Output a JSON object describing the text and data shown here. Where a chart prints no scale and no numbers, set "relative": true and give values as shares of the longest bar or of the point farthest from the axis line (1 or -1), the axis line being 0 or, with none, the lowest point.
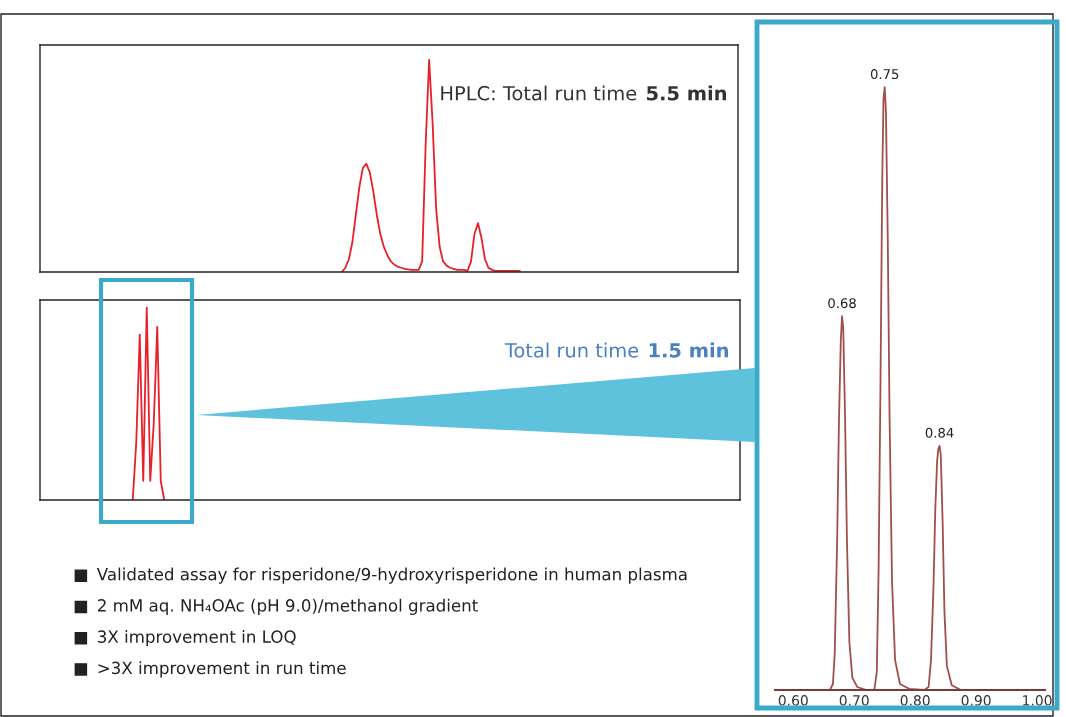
{
  "chart_data": [
    {
      "type": "line",
      "relative": true,
      "tick_labels": false,
      "grid": false,
      "categories": [
        null,
        null,
        null,
        null,
        null,
        null,
        null,
        null,
        null,
        null,
        null,
        null,
        null,
        null,
        null,
        null,
        null,
        null,
        null,
        null,
        null,
        null,
        null,
        null,
        null,
        null,
        null,
        null,
        null,
        null,
        null,
        null,
        null,
        null,
        null,
        null,
        null,
        null,
        null,
        null,
        null,
        null,
        null,
        null,
        null,
        null,
        null,
        null,
        null,
        null,
        null,
        null,
        null,
        null,
        null,
        null,
        null,
        null,
        null,
        null,
        null,
        null,
        null,
        null,
        null,
        null,
        null,
        null,
        null,
        null,
        null,
        null,
        null,
        null,
        null,
        null,
        null,
        null,
        null,
        null,
        null,
        null,
        null,
        null,
        null,
        null,
        null,
        null,
        null,
        null,
        null,
        null,
        null,
        null,
        null,
        null,
        null,
        null,
        null,
        null,
        null,
        null,
        null,
        null,
        null,
        null,
        null,
        null,
        null,
        null,
        null,
        null,
        null,
        null,
        null,
        null,
        null,
        null,
        null,
        null,
        null,
        null,
        null,
        null,
        null,
        null,
        null,
        null,
        null,
        null,
        null,
        null,
        null,
        null,
        null,
        null,
        null,
        null,
        null,
        null,
        null,
        null,
        null,
        null,
        null,
        null,
        null,
        null,
        null,
        null,
        null,
        null,
        null,
        null,
        null,
        null,
        null,
        null,
        null,
        null,
        null,
        null,
        null,
        null,
        null,
        null,
        null,
        null,
        null,
        null,
        null,
        null,
        null,
        null,
        null,
        null,
        null,
        null,
        null,
        null,
        null,
        null,
        null,
        null,
        null,
        null,
        null,
        null,
        null,
        null,
        null,
        null,
        null,
        null,
        null,
        null,
        null,
        null,
        null,
        null
      ],
      "series": [
        {
          "color": "#e8202a",
          "values": [
            null,
            null,
            null,
            null,
            null,
            null,
            null,
            null,
            null,
            null,
            null,
            null,
            null,
            null,
            null,
            null,
            null,
            null,
            null,
            null,
            null,
            null,
            null,
            null,
            null,
            null,
            null,
            null,
            null,
            null,
            null,
            null,
            null,
            null,
            null,
            null,
            null,
            null,
            null,
            null,
            null,
            null,
            null,
            null,
            null,
            null,
            null,
            null,
            null,
            null,
            null,
            null,
            null,
            null,
            null,
            null,
            null,
            null,
            null,
            null,
            null,
            null,
            null,
            null,
            null,
            null,
            null,
            null,
            null,
            null,
            null,
            null,
            null,
            null,
            null,
            null,
            null,
            null,
            null,
            null,
            null,
            null,
            null,
            null,
            null,
            null,
            0,
            0.02,
            0.06,
            0.14,
            0.27,
            0.4,
            0.49,
            0.51,
            0.47,
            0.38,
            0.27,
            0.18,
            0.12,
            0.08,
            0.05,
            0.035,
            0.025,
            0.02,
            0.015,
            0.012,
            0.01,
            0.01,
            0.01,
            0.05,
            0.6,
            1,
            0.7,
            0.3,
            0.12,
            0.05,
            0.03,
            0.02,
            0.015,
            0.01,
            0.01,
            0.01,
            0.005,
            0.05,
            0.18,
            0.23,
            0.16,
            0.06,
            0.02,
            0.01,
            0.005,
            0.005,
            0.005,
            0.005,
            0.005,
            0.005,
            0.005,
            0.005,
            null,
            null,
            null,
            null,
            null,
            null,
            null,
            null,
            null,
            null,
            null,
            null,
            null,
            null,
            null,
            null,
            null,
            null,
            null,
            null,
            null,
            null,
            null,
            null,
            null,
            null,
            null,
            null,
            null,
            null,
            null,
            null,
            null,
            null,
            null,
            null,
            null,
            null,
            null,
            null,
            null,
            null,
            null,
            null,
            null,
            null,
            null,
            null,
            null,
            null,
            null,
            null,
            null,
            null,
            null,
            null,
            null,
            null,
            null,
            null,
            null,
            null
          ]
        }
      ],
      "annotations": [
        "HPLC: Total run time",
        "5.5 min"
      ]
    },
    {
      "type": "line",
      "relative": true,
      "tick_labels": false,
      "grid": false,
      "categories": [
        null,
        null,
        null,
        null,
        null,
        null,
        null,
        null,
        null,
        null,
        null,
        null,
        null,
        null,
        null,
        null,
        null,
        null,
        null,
        null,
        null,
        null,
        null,
        null,
        null,
        null,
        null,
        null,
        null,
        null,
        null,
        null,
        null,
        null,
        null,
        null,
        null,
        null,
        null,
        null,
        null,
        null,
        null,
        null,
        null,
        null,
        null,
        null,
        null,
        null,
        null,
        null,
        null,
        null,
        null,
        null,
        null,
        null,
        null,
        null,
        null,
        null,
        null,
        null,
        null,
        null,
        null,
        null,
        null,
        null,
        null,
        null,
        null,
        null,
        null,
        null,
        null,
        null,
        null,
        null,
        null,
        null,
        null,
        null,
        null,
        null,
        null,
        null,
        null,
        null,
        null,
        null,
        null,
        null,
        null,
        null,
        null,
        null,
        null,
        null,
        null,
        null,
        null,
        null,
        null,
        null,
        null,
        null,
        null,
        null,
        null,
        null,
        null,
        null,
        null,
        null,
        null,
        null,
        null,
        null,
        null,
        null,
        null,
        null,
        null,
        null,
        null,
        null,
        null,
        null,
        null,
        null,
        null,
        null,
        null,
        null,
        null,
        null,
        null,
        null,
        null,
        null,
        null,
        null,
        null,
        null,
        null,
        null,
        null,
        null,
        null,
        null,
        null,
        null,
        null,
        null,
        null,
        null,
        null,
        null,
        null,
        null,
        null,
        null,
        null,
        null,
        null,
        null,
        null,
        null,
        null,
        null,
        null,
        null,
        null,
        null,
        null,
        null,
        null,
        null,
        null,
        null,
        null,
        null,
        null,
        null,
        null,
        null,
        null,
        null,
        null,
        null,
        null,
        null,
        null,
        null,
        null,
        null,
        null,
        null
      ],
      "series": [
        {
          "color": "#e8202a",
          "values": [
            null,
            null,
            null,
            null,
            null,
            null,
            null,
            null,
            null,
            null,
            null,
            null,
            null,
            null,
            null,
            null,
            null,
            null,
            null,
            null,
            null,
            null,
            null,
            null,
            null,
            null,
            0,
            0.3,
            0.86,
            0.1,
            1,
            0.1,
            0.4,
            0.9,
            0.1,
            0,
            null,
            null,
            null,
            null,
            null,
            null,
            null,
            null,
            null,
            null,
            null,
            null,
            null,
            null,
            null,
            null,
            null,
            null,
            null,
            null,
            null,
            null,
            null,
            null,
            null,
            null,
            null,
            null,
            null,
            null,
            null,
            null,
            null,
            null,
            null,
            null,
            null,
            null,
            null,
            null,
            null,
            null,
            null,
            null,
            null,
            null,
            null,
            null,
            null,
            null,
            null,
            null,
            null,
            null,
            null,
            null,
            null,
            null,
            null,
            null,
            null,
            null,
            null,
            null,
            null,
            null,
            null,
            null,
            null,
            null,
            null,
            null,
            null,
            null,
            null,
            null,
            null,
            null,
            null,
            null,
            null,
            null,
            null,
            null,
            null,
            null,
            null,
            null,
            null,
            null,
            null,
            null,
            null,
            null,
            null,
            null,
            null,
            null,
            null,
            null,
            null,
            null,
            null,
            null,
            null,
            null,
            null,
            null,
            null,
            null,
            null,
            null,
            null,
            null,
            null,
            null,
            null,
            null,
            null,
            null,
            null,
            null,
            null,
            null,
            null,
            null,
            null,
            null,
            null,
            null,
            null,
            null,
            null,
            null,
            null,
            null,
            null,
            null,
            null,
            null,
            null,
            null,
            null,
            null,
            null,
            null,
            null,
            null,
            null,
            null,
            null,
            null,
            null,
            null,
            null,
            null,
            null,
            null,
            null,
            null,
            null,
            null,
            null,
            null
          ]
        }
      ],
      "annotations": [
        "Total run time",
        "1.5 min"
      ]
    },
    {
      "type": "line",
      "relative": true,
      "tick_labels": "x",
      "grid": false,
      "xlim": [
        0.57,
        1.013
      ],
      "xticks": [
        {
          "value": 0.6,
          "label": "0.60"
        },
        {
          "value": 0.7,
          "label": "0.70"
        },
        {
          "value": 0.8,
          "label": "0.80"
        },
        {
          "value": 0.9,
          "label": "0.90"
        },
        {
          "value": 1,
          "label": "1.00"
        }
      ],
      "series": [
        {
          "color": "#a0504a",
          "x": [
            0.57,
            0.66,
            0.665,
            0.668,
            0.672,
            0.675,
            0.678,
            0.68,
            0.682,
            0.685,
            0.688,
            0.692,
            0.697,
            0.705,
            0.72,
            0.733,
            0.737,
            0.74,
            0.743,
            0.746,
            0.748,
            0.75,
            0.752,
            0.755,
            0.758,
            0.762,
            0.767,
            0.775,
            0.79,
            0.815,
            0.822,
            0.826,
            0.83,
            0.833,
            0.836,
            0.838,
            0.84,
            0.842,
            0.845,
            0.848,
            0.852,
            0.86,
            0.875,
            1.013
          ],
          "values": [
            0,
            0,
            0.01,
            0.06,
            0.25,
            0.45,
            0.58,
            0.62,
            0.6,
            0.45,
            0.25,
            0.08,
            0.02,
            0.005,
            0,
            0,
            0.03,
            0.2,
            0.5,
            0.85,
            0.98,
            1,
            0.96,
            0.75,
            0.45,
            0.18,
            0.05,
            0.01,
            0.002,
            0,
            0.005,
            0.05,
            0.17,
            0.3,
            0.38,
            0.4,
            0.405,
            0.39,
            0.28,
            0.13,
            0.04,
            0.008,
            0,
            0
          ]
        }
      ],
      "annotations": [
        {
          "text": "0.68",
          "x": 0.68,
          "y": 0.62
        },
        {
          "text": "0.75",
          "x": 0.75,
          "y": 1
        },
        {
          "text": "0.84",
          "x": 0.84,
          "y": 0.405
        }
      ]
    },
    {
      "type": "other",
      "annotations": [
        "Validated assay for risperidone/9-hydroxyrisperidone in human plasma",
        "2 mM aq. NH₄OAc (pH 9.0)/methanol gradient",
        "3X improvement in LOQ",
        ">3X improvement in run time"
      ]
    }
  ]
}
